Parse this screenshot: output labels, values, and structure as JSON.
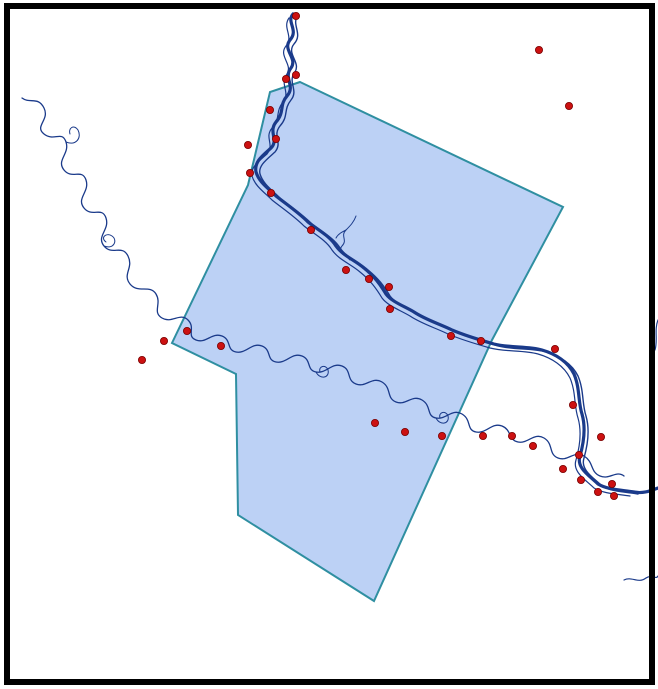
{
  "map": {
    "colors": {
      "background": "#ffffff",
      "frame": "#000000",
      "polygon_fill": "#bcd1f5",
      "polygon_stroke": "#2f8fa1",
      "river": "#1a3a8a",
      "point_fill": "#cc1111",
      "point_stroke": "#7a0000"
    },
    "layers": [
      {
        "name": "study-area-polygon",
        "type": "polygon"
      },
      {
        "name": "river-network",
        "type": "line"
      },
      {
        "name": "sample-points",
        "type": "point"
      }
    ]
  }
}
